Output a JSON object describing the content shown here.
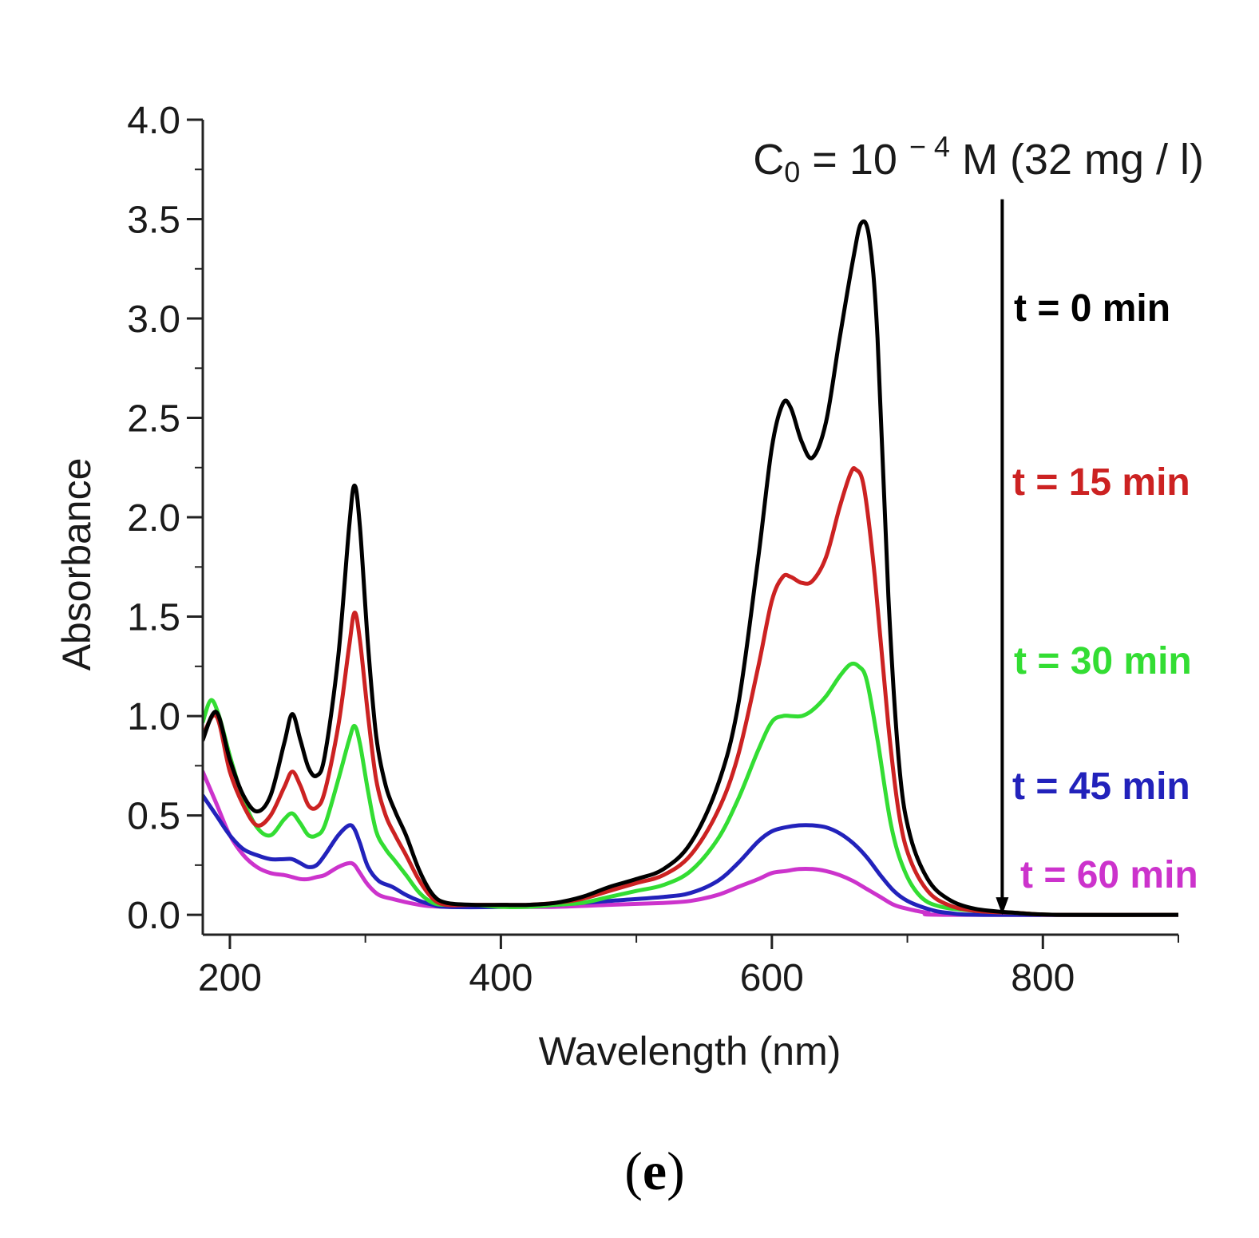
{
  "chart_data": {
    "type": "line",
    "title": "",
    "annotation": {
      "base": "C",
      "subscript": "0",
      "middle": " = 10 ",
      "superscript": "− 4",
      "tail": " M (32 mg / l)"
    },
    "xlabel": "Wavelength (nm)",
    "ylabel": "Absorbance",
    "xlim": [
      180,
      900
    ],
    "ylim": [
      -0.1,
      4.0
    ],
    "x_ticks": [
      200,
      400,
      600,
      800
    ],
    "y_ticks": [
      0.0,
      0.5,
      1.0,
      1.5,
      2.0,
      2.5,
      3.0,
      3.5,
      4.0
    ],
    "y_tick_labels": [
      "0.0",
      "0.5",
      "1.0",
      "1.5",
      "2.0",
      "2.5",
      "3.0",
      "3.5",
      "4.0"
    ],
    "x_tick_labels": [
      "200",
      "400",
      "600",
      "800"
    ],
    "arrow": {
      "x": 770,
      "y_from": 3.6,
      "y_to": 0.0,
      "meaning": "decreasing absorbance with time"
    },
    "panel_label": {
      "open": "(",
      "letter": "e",
      "close": ")"
    },
    "series": [
      {
        "name": "t = 0 min",
        "color": "#000000",
        "points": [
          [
            180,
            0.88
          ],
          [
            190,
            1.02
          ],
          [
            200,
            0.78
          ],
          [
            210,
            0.6
          ],
          [
            220,
            0.52
          ],
          [
            230,
            0.6
          ],
          [
            240,
            0.86
          ],
          [
            246,
            1.01
          ],
          [
            252,
            0.88
          ],
          [
            258,
            0.74
          ],
          [
            264,
            0.7
          ],
          [
            270,
            0.8
          ],
          [
            280,
            1.3
          ],
          [
            288,
            1.95
          ],
          [
            292,
            2.16
          ],
          [
            296,
            1.95
          ],
          [
            302,
            1.35
          ],
          [
            308,
            0.9
          ],
          [
            315,
            0.65
          ],
          [
            322,
            0.52
          ],
          [
            330,
            0.4
          ],
          [
            340,
            0.22
          ],
          [
            350,
            0.1
          ],
          [
            360,
            0.06
          ],
          [
            380,
            0.05
          ],
          [
            400,
            0.05
          ],
          [
            420,
            0.05
          ],
          [
            440,
            0.06
          ],
          [
            460,
            0.09
          ],
          [
            480,
            0.14
          ],
          [
            500,
            0.18
          ],
          [
            520,
            0.23
          ],
          [
            540,
            0.36
          ],
          [
            560,
            0.65
          ],
          [
            575,
            1.05
          ],
          [
            590,
            1.8
          ],
          [
            600,
            2.35
          ],
          [
            608,
            2.57
          ],
          [
            614,
            2.55
          ],
          [
            622,
            2.38
          ],
          [
            630,
            2.3
          ],
          [
            640,
            2.48
          ],
          [
            650,
            2.9
          ],
          [
            660,
            3.3
          ],
          [
            666,
            3.48
          ],
          [
            672,
            3.4
          ],
          [
            678,
            2.9
          ],
          [
            686,
            1.6
          ],
          [
            694,
            0.75
          ],
          [
            702,
            0.4
          ],
          [
            715,
            0.18
          ],
          [
            730,
            0.08
          ],
          [
            750,
            0.03
          ],
          [
            780,
            0.01
          ],
          [
            810,
            0.0
          ],
          [
            900,
            0.0
          ]
        ]
      },
      {
        "name": "t = 15 min",
        "color": "#cc2222",
        "points": [
          [
            180,
            0.9
          ],
          [
            190,
            1.0
          ],
          [
            200,
            0.72
          ],
          [
            210,
            0.55
          ],
          [
            220,
            0.45
          ],
          [
            230,
            0.5
          ],
          [
            240,
            0.64
          ],
          [
            246,
            0.72
          ],
          [
            252,
            0.65
          ],
          [
            258,
            0.55
          ],
          [
            264,
            0.54
          ],
          [
            270,
            0.62
          ],
          [
            280,
            0.95
          ],
          [
            288,
            1.35
          ],
          [
            292,
            1.52
          ],
          [
            296,
            1.38
          ],
          [
            302,
            1.0
          ],
          [
            308,
            0.68
          ],
          [
            315,
            0.5
          ],
          [
            322,
            0.4
          ],
          [
            330,
            0.3
          ],
          [
            340,
            0.17
          ],
          [
            350,
            0.08
          ],
          [
            360,
            0.05
          ],
          [
            380,
            0.05
          ],
          [
            400,
            0.05
          ],
          [
            420,
            0.05
          ],
          [
            440,
            0.06
          ],
          [
            460,
            0.08
          ],
          [
            480,
            0.12
          ],
          [
            500,
            0.16
          ],
          [
            520,
            0.2
          ],
          [
            540,
            0.3
          ],
          [
            560,
            0.52
          ],
          [
            575,
            0.8
          ],
          [
            590,
            1.25
          ],
          [
            600,
            1.58
          ],
          [
            608,
            1.7
          ],
          [
            614,
            1.7
          ],
          [
            622,
            1.67
          ],
          [
            630,
            1.68
          ],
          [
            640,
            1.8
          ],
          [
            650,
            2.05
          ],
          [
            658,
            2.22
          ],
          [
            662,
            2.24
          ],
          [
            668,
            2.15
          ],
          [
            676,
            1.7
          ],
          [
            686,
            0.95
          ],
          [
            694,
            0.5
          ],
          [
            702,
            0.28
          ],
          [
            715,
            0.12
          ],
          [
            730,
            0.05
          ],
          [
            750,
            0.02
          ],
          [
            780,
            0.01
          ],
          [
            810,
            0.0
          ],
          [
            900,
            0.0
          ]
        ]
      },
      {
        "name": "t = 30 min",
        "color": "#33dd33",
        "points": [
          [
            180,
            0.97
          ],
          [
            186,
            1.08
          ],
          [
            192,
            1.0
          ],
          [
            200,
            0.8
          ],
          [
            210,
            0.58
          ],
          [
            220,
            0.44
          ],
          [
            230,
            0.4
          ],
          [
            240,
            0.48
          ],
          [
            246,
            0.51
          ],
          [
            252,
            0.46
          ],
          [
            258,
            0.4
          ],
          [
            264,
            0.4
          ],
          [
            270,
            0.45
          ],
          [
            280,
            0.68
          ],
          [
            288,
            0.88
          ],
          [
            292,
            0.95
          ],
          [
            296,
            0.86
          ],
          [
            302,
            0.62
          ],
          [
            308,
            0.42
          ],
          [
            315,
            0.33
          ],
          [
            322,
            0.27
          ],
          [
            330,
            0.2
          ],
          [
            340,
            0.11
          ],
          [
            350,
            0.06
          ],
          [
            360,
            0.05
          ],
          [
            380,
            0.05
          ],
          [
            400,
            0.04
          ],
          [
            420,
            0.04
          ],
          [
            440,
            0.05
          ],
          [
            460,
            0.06
          ],
          [
            480,
            0.09
          ],
          [
            500,
            0.12
          ],
          [
            520,
            0.15
          ],
          [
            540,
            0.22
          ],
          [
            560,
            0.38
          ],
          [
            575,
            0.58
          ],
          [
            590,
            0.83
          ],
          [
            600,
            0.97
          ],
          [
            608,
            1.0
          ],
          [
            614,
            1.0
          ],
          [
            622,
            1.0
          ],
          [
            630,
            1.03
          ],
          [
            640,
            1.1
          ],
          [
            650,
            1.2
          ],
          [
            658,
            1.26
          ],
          [
            664,
            1.25
          ],
          [
            670,
            1.18
          ],
          [
            678,
            0.88
          ],
          [
            688,
            0.45
          ],
          [
            698,
            0.22
          ],
          [
            710,
            0.09
          ],
          [
            725,
            0.04
          ],
          [
            750,
            0.02
          ],
          [
            780,
            0.01
          ],
          [
            810,
            0.0
          ],
          [
            900,
            0.0
          ]
        ]
      },
      {
        "name": "t = 45 min",
        "color": "#2222bb",
        "points": [
          [
            180,
            0.6
          ],
          [
            190,
            0.5
          ],
          [
            200,
            0.4
          ],
          [
            210,
            0.33
          ],
          [
            220,
            0.3
          ],
          [
            230,
            0.28
          ],
          [
            240,
            0.28
          ],
          [
            246,
            0.28
          ],
          [
            252,
            0.26
          ],
          [
            258,
            0.24
          ],
          [
            264,
            0.25
          ],
          [
            270,
            0.3
          ],
          [
            280,
            0.4
          ],
          [
            288,
            0.45
          ],
          [
            292,
            0.43
          ],
          [
            296,
            0.36
          ],
          [
            302,
            0.24
          ],
          [
            310,
            0.17
          ],
          [
            320,
            0.14
          ],
          [
            330,
            0.1
          ],
          [
            340,
            0.07
          ],
          [
            350,
            0.05
          ],
          [
            360,
            0.04
          ],
          [
            400,
            0.04
          ],
          [
            440,
            0.05
          ],
          [
            480,
            0.07
          ],
          [
            520,
            0.09
          ],
          [
            540,
            0.11
          ],
          [
            560,
            0.17
          ],
          [
            575,
            0.26
          ],
          [
            590,
            0.37
          ],
          [
            600,
            0.42
          ],
          [
            610,
            0.44
          ],
          [
            620,
            0.45
          ],
          [
            630,
            0.45
          ],
          [
            640,
            0.44
          ],
          [
            650,
            0.41
          ],
          [
            660,
            0.36
          ],
          [
            670,
            0.29
          ],
          [
            680,
            0.2
          ],
          [
            690,
            0.12
          ],
          [
            700,
            0.07
          ],
          [
            715,
            0.03
          ],
          [
            730,
            0.01
          ],
          [
            760,
            0.0
          ],
          [
            900,
            0.0
          ]
        ]
      },
      {
        "name": "t = 60 min",
        "color": "#cc33cc",
        "points": [
          [
            180,
            0.72
          ],
          [
            190,
            0.56
          ],
          [
            200,
            0.4
          ],
          [
            210,
            0.3
          ],
          [
            220,
            0.24
          ],
          [
            230,
            0.21
          ],
          [
            240,
            0.2
          ],
          [
            246,
            0.19
          ],
          [
            252,
            0.18
          ],
          [
            258,
            0.18
          ],
          [
            264,
            0.19
          ],
          [
            270,
            0.2
          ],
          [
            280,
            0.24
          ],
          [
            288,
            0.26
          ],
          [
            292,
            0.25
          ],
          [
            296,
            0.21
          ],
          [
            302,
            0.15
          ],
          [
            310,
            0.1
          ],
          [
            320,
            0.08
          ],
          [
            340,
            0.05
          ],
          [
            360,
            0.04
          ],
          [
            400,
            0.04
          ],
          [
            440,
            0.04
          ],
          [
            480,
            0.05
          ],
          [
            520,
            0.06
          ],
          [
            540,
            0.07
          ],
          [
            560,
            0.1
          ],
          [
            575,
            0.14
          ],
          [
            590,
            0.18
          ],
          [
            600,
            0.21
          ],
          [
            610,
            0.22
          ],
          [
            620,
            0.23
          ],
          [
            630,
            0.23
          ],
          [
            640,
            0.22
          ],
          [
            650,
            0.2
          ],
          [
            660,
            0.17
          ],
          [
            670,
            0.13
          ],
          [
            680,
            0.09
          ],
          [
            690,
            0.05
          ],
          [
            700,
            0.03
          ],
          [
            715,
            0.01
          ],
          [
            730,
            0.0
          ],
          [
            900,
            0.0
          ]
        ]
      }
    ]
  }
}
